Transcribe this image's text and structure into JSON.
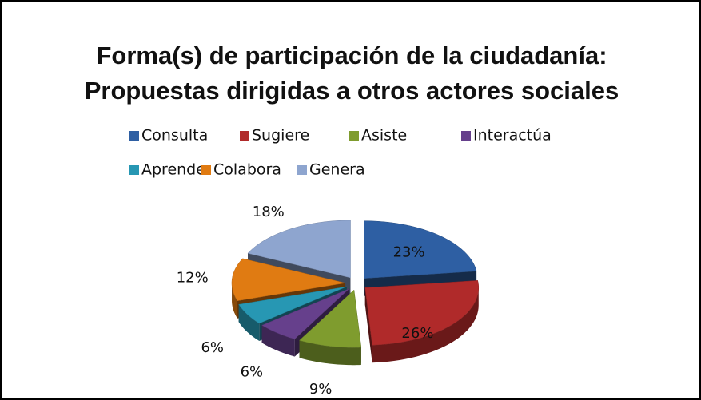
{
  "chart_data": {
    "type": "pie",
    "title": [
      "Forma(s) de participación de la ciudadanía:",
      "Propuestas dirigidas a otros actores sociales"
    ],
    "categories": [
      "Consulta",
      "Sugiere",
      "Asiste",
      "Interactúa",
      "Aprende",
      "Colabora",
      "Genera"
    ],
    "values": [
      23,
      26,
      9,
      6,
      6,
      12,
      18
    ],
    "value_labels": [
      "23%",
      "26%",
      "9%",
      "6%",
      "6%",
      "12%",
      "18%"
    ],
    "colors": [
      "#2e5fa3",
      "#b02a2a",
      "#7f9c2e",
      "#66408c",
      "#2797b3",
      "#e07b12",
      "#8ea5cf"
    ],
    "legend": "top"
  }
}
